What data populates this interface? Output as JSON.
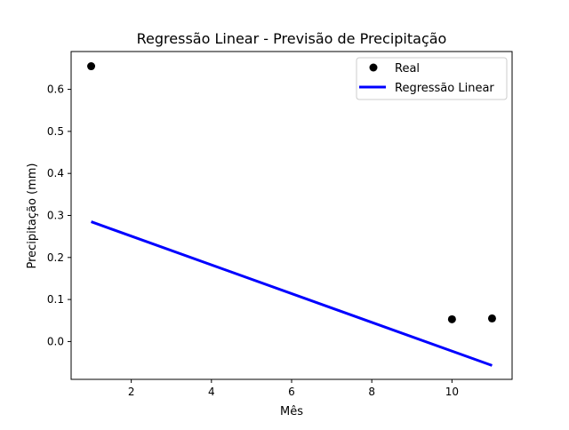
{
  "chart_data": {
    "type": "scatter",
    "title": "Regressão Linear - Previsão de Precipitação",
    "xlabel": "Mês",
    "ylabel": "Precipitação (mm)",
    "xlim": [
      0.5,
      11.5
    ],
    "ylim": [
      -0.09,
      0.69
    ],
    "xticks": [
      2,
      4,
      6,
      8,
      10
    ],
    "yticks": [
      0.0,
      0.1,
      0.2,
      0.3,
      0.4,
      0.5,
      0.6
    ],
    "grid": false,
    "legend_position": "top-right",
    "series": [
      {
        "name": "Real",
        "kind": "scatter",
        "color": "#000000",
        "points": [
          {
            "x": 1,
            "y": 0.655
          },
          {
            "x": 10,
            "y": 0.053
          },
          {
            "x": 11,
            "y": 0.055
          }
        ]
      },
      {
        "name": "Regressão Linear",
        "kind": "line",
        "color": "#0000ff",
        "points": [
          {
            "x": 1,
            "y": 0.285
          },
          {
            "x": 11,
            "y": -0.057
          }
        ]
      }
    ]
  }
}
